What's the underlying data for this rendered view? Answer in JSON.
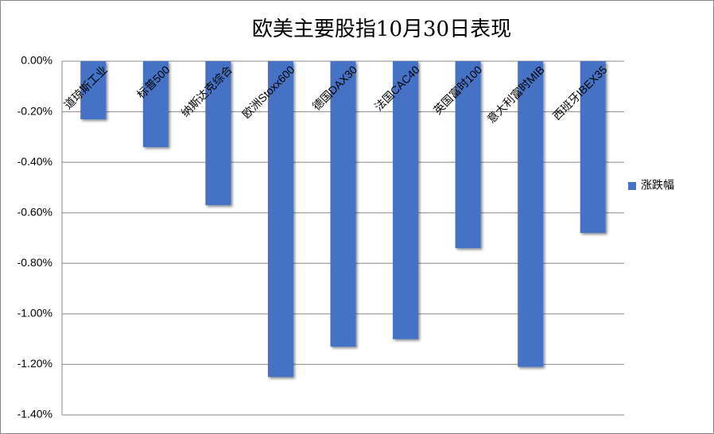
{
  "chart_data": {
    "type": "bar",
    "title": "欧美主要股指10月30日表现",
    "categories": [
      "道琼斯工业",
      "标普500",
      "纳斯达克综合",
      "欧洲Stoxx600",
      "德国DAX30",
      "法国CAC40",
      "英国富时100",
      "意大利富时MIB",
      "西班牙IBEX35"
    ],
    "series": [
      {
        "name": "涨跌幅",
        "color": "#4472c4",
        "values": [
          -0.23,
          -0.34,
          -0.57,
          -1.25,
          -1.13,
          -1.1,
          -0.74,
          -1.21,
          -0.68
        ]
      }
    ],
    "ylim": [
      -1.4,
      0
    ],
    "yticks": [
      {
        "value": 0,
        "label": "0.00%"
      },
      {
        "value": -0.2,
        "label": "-0.20%"
      },
      {
        "value": -0.4,
        "label": "-0.40%"
      },
      {
        "value": -0.6,
        "label": "-0.60%"
      },
      {
        "value": -0.8,
        "label": "-0.80%"
      },
      {
        "value": -1.0,
        "label": "-1.00%"
      },
      {
        "value": -1.2,
        "label": "-1.20%"
      },
      {
        "value": -1.4,
        "label": "-1.40%"
      }
    ],
    "grid": true,
    "legend": "right"
  }
}
